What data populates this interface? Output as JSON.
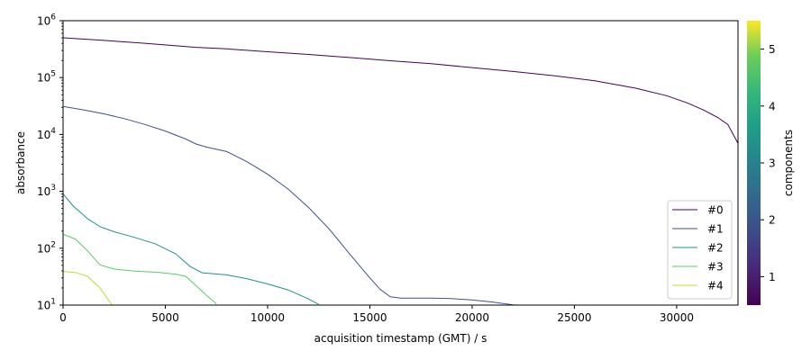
{
  "chart_data": {
    "type": "line",
    "title": "",
    "xlabel": "acquisition timestamp (GMT) / s",
    "ylabel": "absorbance",
    "xlim": [
      0,
      33000
    ],
    "ylim": [
      10,
      1000000
    ],
    "yscale": "log",
    "grid": false,
    "xticks": [
      {
        "value": 0,
        "label": "0"
      },
      {
        "value": 5000,
        "label": "5000"
      },
      {
        "value": 10000,
        "label": "10000"
      },
      {
        "value": 15000,
        "label": "15000"
      },
      {
        "value": 20000,
        "label": "20000"
      },
      {
        "value": 25000,
        "label": "25000"
      },
      {
        "value": 30000,
        "label": "30000"
      }
    ],
    "yticks": [
      {
        "value": 10,
        "base": "10",
        "exp": "1"
      },
      {
        "value": 100,
        "base": "10",
        "exp": "2"
      },
      {
        "value": 1000,
        "base": "10",
        "exp": "3"
      },
      {
        "value": 10000,
        "base": "10",
        "exp": "4"
      },
      {
        "value": 100000,
        "base": "10",
        "exp": "5"
      },
      {
        "value": 1000000,
        "base": "10",
        "exp": "6"
      }
    ],
    "legend_position": "lower right",
    "series": [
      {
        "name": "#0",
        "color": "#440154",
        "x": [
          0,
          2000,
          4000,
          6500,
          8000,
          10000,
          12000,
          14000,
          16000,
          18000,
          20000,
          22000,
          24000,
          26000,
          28000,
          29500,
          30500,
          31300,
          32000,
          32500,
          33000
        ],
        "y": [
          500000,
          450000,
          400000,
          340000,
          320000,
          285000,
          255000,
          225000,
          198000,
          175000,
          150000,
          128000,
          108000,
          88000,
          65000,
          48000,
          36000,
          27000,
          20000,
          15000,
          7000
        ]
      },
      {
        "name": "#1",
        "color": "#3b528b",
        "x": [
          0,
          1000,
          2000,
          3000,
          4000,
          5000,
          6000,
          6500,
          7000,
          8000,
          9000,
          10000,
          11000,
          12000,
          13000,
          14000,
          15000,
          15500,
          16000,
          16500,
          17000,
          18000,
          19000,
          20000,
          21000,
          22000,
          22300
        ],
        "y": [
          31000,
          27000,
          23000,
          19000,
          15000,
          11500,
          8300,
          6800,
          6000,
          5000,
          3300,
          2000,
          1100,
          520,
          220,
          80,
          30,
          19,
          14,
          13.3,
          13.3,
          13.3,
          13,
          12.3,
          11.3,
          10.1,
          10
        ]
      },
      {
        "name": "#2",
        "color": "#21918c",
        "x": [
          0,
          500,
          1200,
          1800,
          2500,
          3500,
          4500,
          5500,
          6200,
          6800,
          8000,
          9000,
          10000,
          11000,
          12000,
          12500
        ],
        "y": [
          900,
          550,
          330,
          240,
          195,
          155,
          120,
          80,
          48,
          37,
          34,
          29,
          23.5,
          18.5,
          12.8,
          10.3
        ]
      },
      {
        "name": "#3",
        "color": "#5ec962",
        "x": [
          0,
          600,
          1200,
          1800,
          2500,
          3500,
          4500,
          5500,
          6000,
          6500,
          7000,
          7500
        ],
        "y": [
          175,
          145,
          90,
          51,
          43,
          39.5,
          38,
          35,
          32,
          22,
          15,
          10.5
        ]
      },
      {
        "name": "#4",
        "color": "#c8d82a",
        "x": [
          0,
          600,
          1200,
          1800,
          2400
        ],
        "y": [
          39,
          37.5,
          32,
          20,
          10
        ]
      }
    ],
    "colorbar": {
      "label": "components",
      "range": [
        0.5,
        5.5
      ],
      "ticks": [
        "1",
        "2",
        "3",
        "4",
        "5"
      ],
      "colormap": "viridis"
    }
  }
}
